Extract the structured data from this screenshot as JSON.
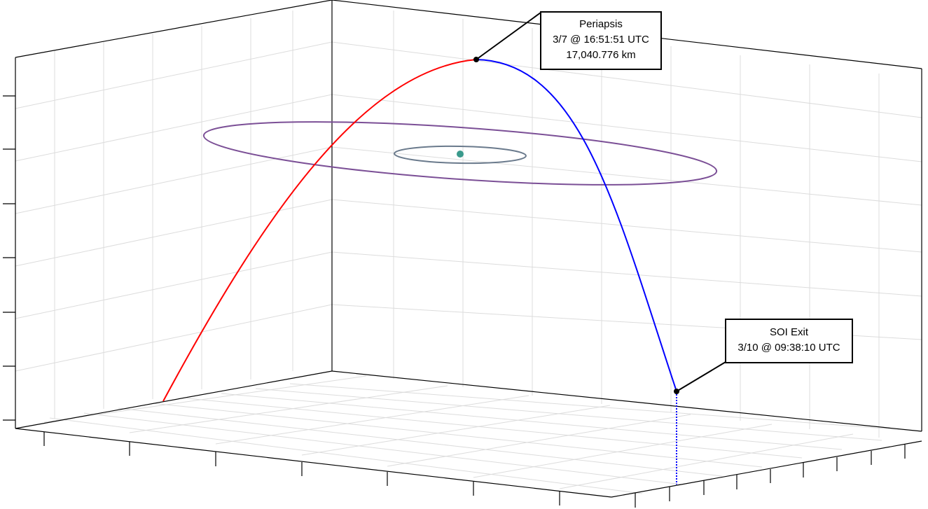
{
  "colors": {
    "incoming_trajectory": "#ff0000",
    "outgoing_trajectory": "#0000ff",
    "outer_orbit": "#7b4f96",
    "inner_orbit": "#6a7a8c",
    "central_body": "#3a9a8c",
    "grid": "#dcdcdc",
    "axes": "#000000",
    "markers": "#000000"
  },
  "annotations": {
    "periapsis": {
      "title": "Periapsis",
      "date": "3/7 @ 16:51:51 UTC",
      "altitude": "17,040.776 km"
    },
    "soi_exit": {
      "title": "SOI Exit",
      "date": "3/10 @ 09:38:10 UTC"
    }
  }
}
